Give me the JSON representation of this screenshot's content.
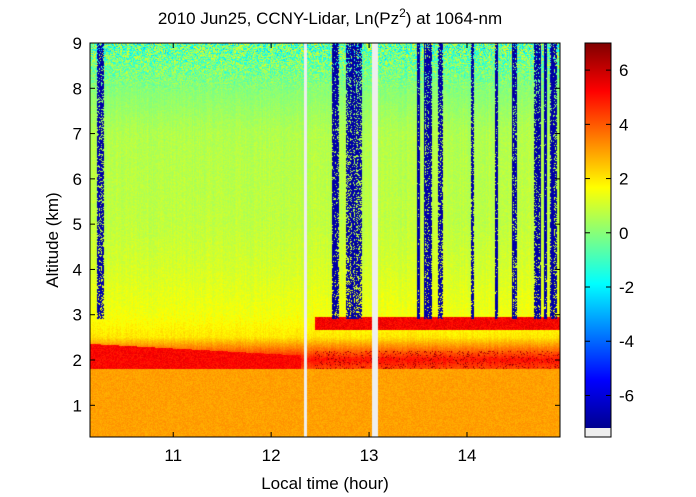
{
  "chart_data": {
    "type": "heatmap",
    "title": {
      "prefix": "2010 Jun25, CCNY-Lidar, Ln(Pz",
      "superscript": "2",
      "suffix": ") at 1064-nm"
    },
    "xlabel": "Local time (hour)",
    "ylabel": "Altitude (km)",
    "xlim": [
      10.15,
      14.95
    ],
    "ylim": [
      0.3,
      9.0
    ],
    "xticks": [
      11,
      12,
      13,
      14
    ],
    "yticks": [
      1,
      2,
      3,
      4,
      5,
      6,
      7,
      8,
      9
    ],
    "colorbar": {
      "range": [
        -7.2,
        7.0
      ],
      "ticks": [
        -6,
        -4,
        -2,
        0,
        2,
        4,
        6
      ],
      "colormap": "jet",
      "colors": [
        "#00008f",
        "#0000ff",
        "#0080ff",
        "#00ffff",
        "#80ff80",
        "#ffff00",
        "#ff8000",
        "#ff0000",
        "#800000"
      ]
    },
    "data_gaps_hours": [
      [
        12.33,
        12.37
      ],
      [
        13.03,
        13.09
      ]
    ],
    "features": [
      {
        "name": "aerosol layer",
        "altitude_km": [
          1.8,
          2.35
        ],
        "time_hours": [
          10.15,
          12.3
        ],
        "value": 5.3
      },
      {
        "name": "elevated layer",
        "altitude_km": [
          2.65,
          2.95
        ],
        "time_hours": [
          12.45,
          14.95
        ],
        "value": 5.5
      },
      {
        "name": "boundary layer",
        "altitude_km": [
          0.3,
          1.8
        ],
        "value": 3.2
      }
    ],
    "profile": [
      {
        "altitude_km": 0.5,
        "value": 3.2
      },
      {
        "altitude_km": 1.0,
        "value": 3.0
      },
      {
        "altitude_km": 1.5,
        "value": 3.2
      },
      {
        "altitude_km": 2.0,
        "value": 5.0
      },
      {
        "altitude_km": 2.5,
        "value": 2.0
      },
      {
        "altitude_km": 3.0,
        "value": 1.5
      },
      {
        "altitude_km": 4.0,
        "value": 1.1
      },
      {
        "altitude_km": 5.0,
        "value": 0.8
      },
      {
        "altitude_km": 6.0,
        "value": 0.7
      },
      {
        "altitude_km": 7.0,
        "value": 0.6
      },
      {
        "altitude_km": 8.0,
        "value": 0.0
      },
      {
        "altitude_km": 9.0,
        "value": -0.5
      }
    ]
  }
}
